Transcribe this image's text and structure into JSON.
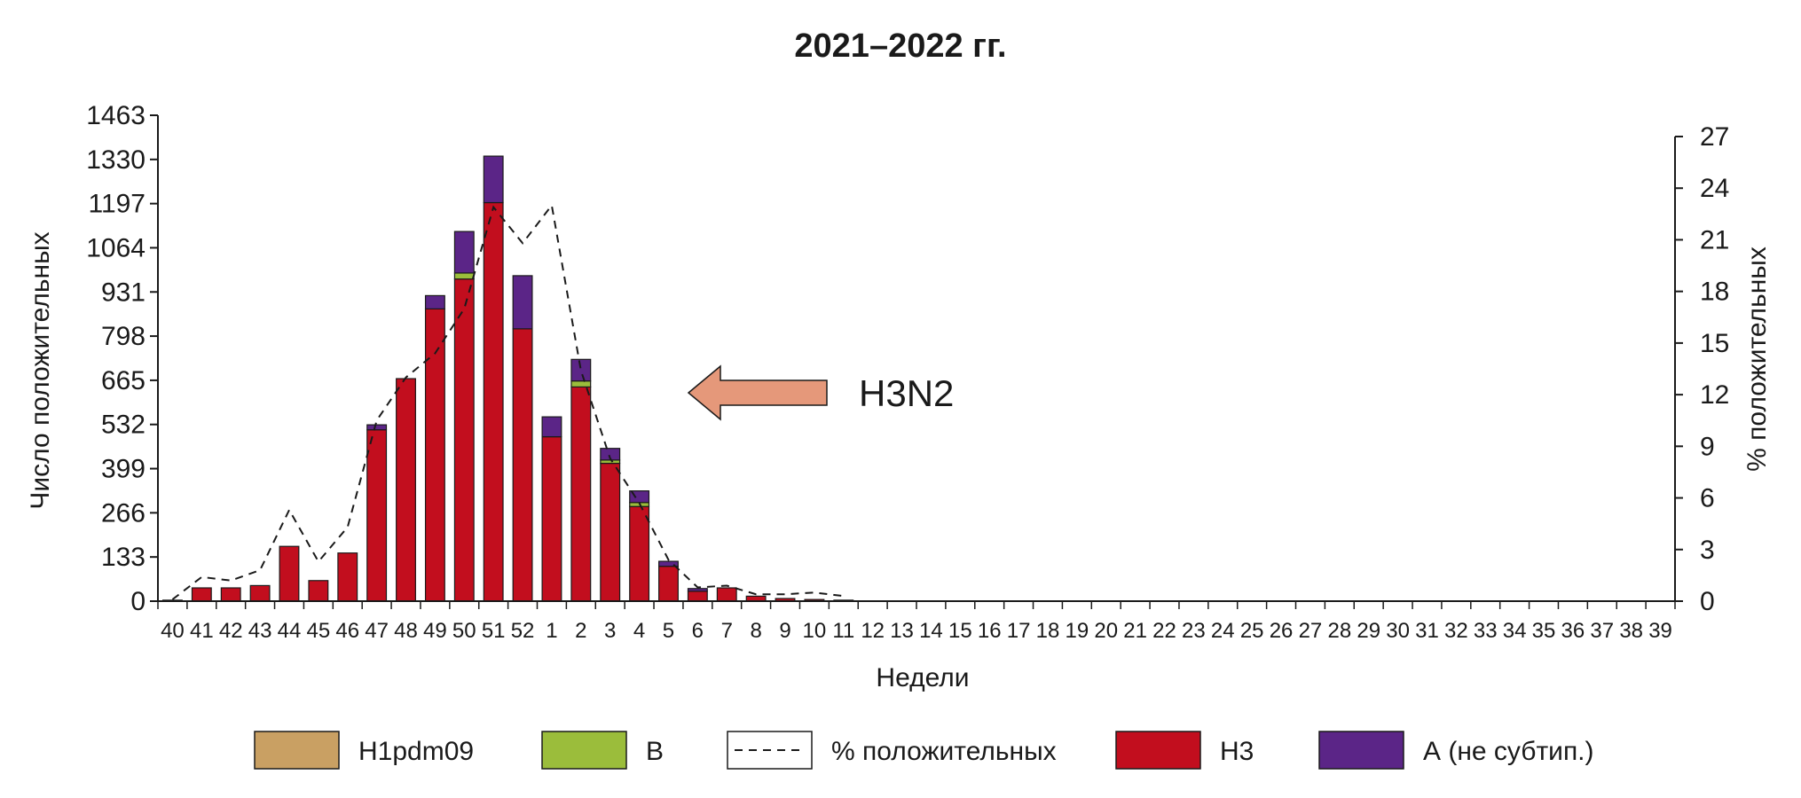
{
  "chart_data": {
    "type": "bar",
    "stacked": true,
    "title": "2021–2022 гг.",
    "xlabel": "Недели",
    "ylabel_left": "Число положительных",
    "ylabel_right": "% положительных",
    "categories": [
      "40",
      "41",
      "42",
      "43",
      "44",
      "45",
      "46",
      "47",
      "48",
      "49",
      "50",
      "51",
      "52",
      "1",
      "2",
      "3",
      "4",
      "5",
      "6",
      "7",
      "8",
      "9",
      "10",
      "11",
      "12",
      "13",
      "14",
      "15",
      "16",
      "17",
      "18",
      "19",
      "20",
      "21",
      "22",
      "23",
      "24",
      "25",
      "26",
      "27",
      "28",
      "29",
      "30",
      "31",
      "32",
      "33",
      "34",
      "35",
      "36",
      "37",
      "38",
      "39"
    ],
    "yticks_left": [
      "0",
      "133",
      "266",
      "399",
      "532",
      "665",
      "798",
      "931",
      "1064",
      "1197",
      "1330",
      "1463"
    ],
    "yticks_right": [
      "0",
      "3",
      "6",
      "9",
      "12",
      "15",
      "18",
      "21",
      "24",
      "27"
    ],
    "ylim_left": [
      0,
      1463
    ],
    "ylim_right": [
      0,
      27
    ],
    "series": [
      {
        "name": "H1pdm09",
        "color": "#c9a063",
        "kind": "bar",
        "values": [
          0,
          0,
          0,
          0,
          0,
          0,
          0,
          0,
          0,
          0,
          0,
          0,
          0,
          0,
          0,
          0,
          0,
          0,
          0,
          0,
          0,
          0,
          0,
          0,
          0,
          0,
          0,
          0,
          0,
          0,
          0,
          0,
          0,
          0,
          0,
          0,
          0,
          0,
          0,
          0,
          0,
          0,
          0,
          0,
          0,
          0,
          0,
          0,
          0,
          0,
          0,
          0
        ]
      },
      {
        "name": "В",
        "color": "#9bbd3b",
        "kind": "bar",
        "values": [
          0,
          0,
          0,
          0,
          0,
          0,
          0,
          0,
          0,
          0,
          18,
          0,
          0,
          0,
          18,
          10,
          12,
          0,
          0,
          0,
          0,
          0,
          0,
          0,
          0,
          0,
          0,
          0,
          0,
          0,
          0,
          0,
          0,
          0,
          0,
          0,
          0,
          0,
          0,
          0,
          0,
          0,
          0,
          0,
          0,
          0,
          0,
          0,
          0,
          0,
          0,
          0
        ]
      },
      {
        "name": "% положительных",
        "color": "#1a1a1a",
        "kind": "line",
        "dashed": true,
        "values": [
          0.1,
          1.4,
          1.2,
          1.8,
          5.3,
          2.3,
          4.3,
          10.5,
          13.0,
          14.4,
          17.0,
          22.9,
          20.8,
          23.0,
          13.4,
          8.3,
          5.7,
          2.4,
          0.8,
          0.9,
          0.4,
          0.4,
          0.5,
          0.3,
          0,
          0,
          0,
          0,
          0,
          0,
          0,
          0,
          0,
          0,
          0,
          0,
          0,
          0,
          0,
          0,
          0,
          0,
          0,
          0,
          0,
          0,
          0,
          0,
          0,
          0,
          0,
          0
        ]
      },
      {
        "name": "H3",
        "color": "#c20e1e",
        "kind": "bar",
        "values": [
          3,
          40,
          40,
          47,
          165,
          62,
          145,
          516,
          670,
          880,
          970,
          1200,
          820,
          495,
          645,
          415,
          285,
          105,
          30,
          40,
          15,
          8,
          5,
          3,
          0,
          0,
          0,
          0,
          0,
          0,
          0,
          0,
          0,
          0,
          0,
          0,
          0,
          0,
          0,
          0,
          0,
          0,
          0,
          0,
          0,
          0,
          0,
          0,
          0,
          0,
          0,
          0
        ]
      },
      {
        "name": "А (не субтип.)",
        "color": "#5b2587",
        "kind": "bar",
        "values": [
          0,
          0,
          0,
          0,
          0,
          0,
          0,
          15,
          0,
          40,
          125,
          140,
          160,
          60,
          65,
          35,
          35,
          15,
          8,
          0,
          0,
          0,
          0,
          0,
          0,
          0,
          0,
          0,
          0,
          0,
          0,
          0,
          0,
          0,
          0,
          0,
          0,
          0,
          0,
          0,
          0,
          0,
          0,
          0,
          0,
          0,
          0,
          0,
          0,
          0,
          0,
          0
        ]
      }
    ],
    "legend_position": "bottom",
    "grid": false,
    "annotations": [
      {
        "text": "H3N2",
        "type": "arrow-left",
        "color": "#e5987a",
        "x": "3"
      }
    ]
  }
}
